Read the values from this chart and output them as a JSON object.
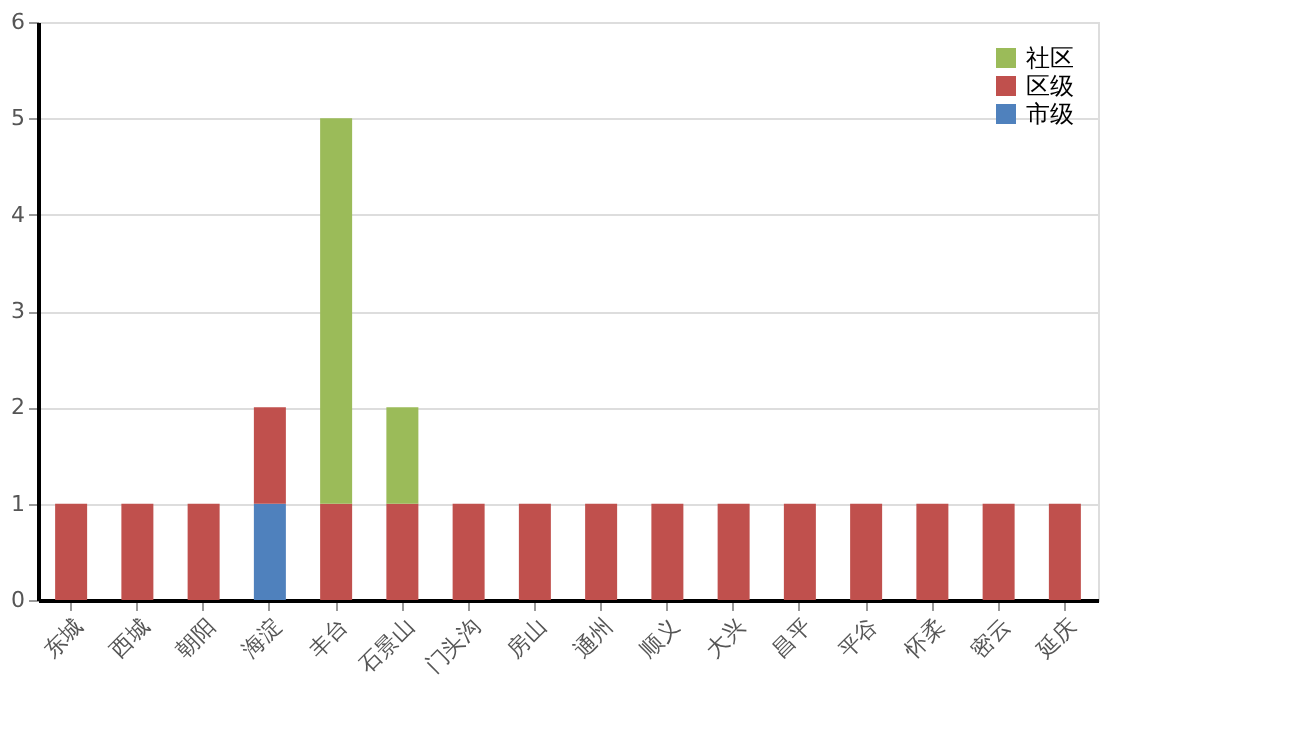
{
  "chart_data": {
    "type": "bar",
    "stacked": true,
    "categories": [
      "东城",
      "西城",
      "朝阳",
      "海淀",
      "丰台",
      "石景山",
      "门头沟",
      "房山",
      "通州",
      "顺义",
      "大兴",
      "昌平",
      "平谷",
      "怀柔",
      "密云",
      "延庆"
    ],
    "series": [
      {
        "name": "市级",
        "color": "#4f81bd",
        "values": [
          0,
          0,
          0,
          1,
          0,
          0,
          0,
          0,
          0,
          0,
          0,
          0,
          0,
          0,
          0,
          0
        ]
      },
      {
        "name": "区级",
        "color": "#c0504d",
        "values": [
          1,
          1,
          1,
          1,
          1,
          1,
          1,
          1,
          1,
          1,
          1,
          1,
          1,
          1,
          1,
          1
        ]
      },
      {
        "name": "社区",
        "color": "#9bbb59",
        "values": [
          0,
          0,
          0,
          0,
          4,
          1,
          0,
          0,
          0,
          0,
          0,
          0,
          0,
          0,
          0,
          0
        ]
      }
    ],
    "ylim": [
      0,
      6
    ],
    "yticks": [
      0,
      1,
      2,
      3,
      4,
      5,
      6
    ],
    "grid": "y",
    "legend": "top right"
  }
}
